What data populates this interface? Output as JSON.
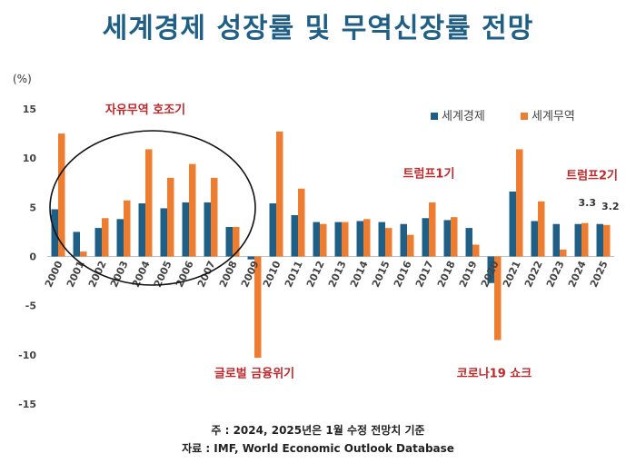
{
  "title": "세계경제 성장률 및 무역신장률 전망",
  "notes": {
    "note": "주 : 2024, 2025년은 1월 수정 전망치 기준",
    "source": "자료 : IMF, World Economic Outlook Database"
  },
  "chart_data": {
    "type": "bar",
    "unit_label": "(%)",
    "ylim": [
      -15,
      15
    ],
    "yticks": [
      15,
      10,
      5,
      0,
      -5,
      -10,
      -15
    ],
    "categories": [
      "2000",
      "2001",
      "2002",
      "2003",
      "2004",
      "2005",
      "2006",
      "2007",
      "2008",
      "2009",
      "2010",
      "2011",
      "2012",
      "2013",
      "2014",
      "2015",
      "2016",
      "2017",
      "2018",
      "2019",
      "2020",
      "2021",
      "2022",
      "2023",
      "2024",
      "2025"
    ],
    "series": [
      {
        "name": "세계경제",
        "color": "#1f5f86",
        "values": [
          4.8,
          2.5,
          2.9,
          3.8,
          5.4,
          4.9,
          5.5,
          5.5,
          3.0,
          -0.3,
          5.4,
          4.2,
          3.5,
          3.5,
          3.6,
          3.5,
          3.3,
          3.9,
          3.7,
          2.9,
          -2.7,
          6.6,
          3.6,
          3.3,
          3.3,
          3.3
        ]
      },
      {
        "name": "세계무역",
        "color": "#ed7d31",
        "values": [
          12.5,
          0.5,
          3.9,
          5.7,
          10.9,
          8.0,
          9.4,
          8.0,
          3.0,
          -10.3,
          12.7,
          6.9,
          3.3,
          3.5,
          3.8,
          2.9,
          2.2,
          5.5,
          4.0,
          1.2,
          -8.5,
          10.9,
          5.6,
          0.7,
          3.4,
          3.2
        ]
      }
    ],
    "legend_position": "top-right",
    "grid": false,
    "annotations": [
      {
        "text": "자유무역 호조기",
        "category": "2004",
        "y": 15
      },
      {
        "text": "트럼프1기",
        "category": "2017",
        "y": 8.5
      },
      {
        "text": "트럼프2기",
        "category": "2025",
        "y": 8.3
      },
      {
        "text": "글로벌 금융위기",
        "category": "2009",
        "y": -11.8
      },
      {
        "text": "코로나19 쇼크",
        "category": "2020",
        "y": -11.8
      }
    ],
    "data_labels": [
      {
        "text": "3.3",
        "category": "2025",
        "series": "세계경제"
      },
      {
        "text": "3.2",
        "category": "2025",
        "series": "세계무역"
      }
    ]
  }
}
